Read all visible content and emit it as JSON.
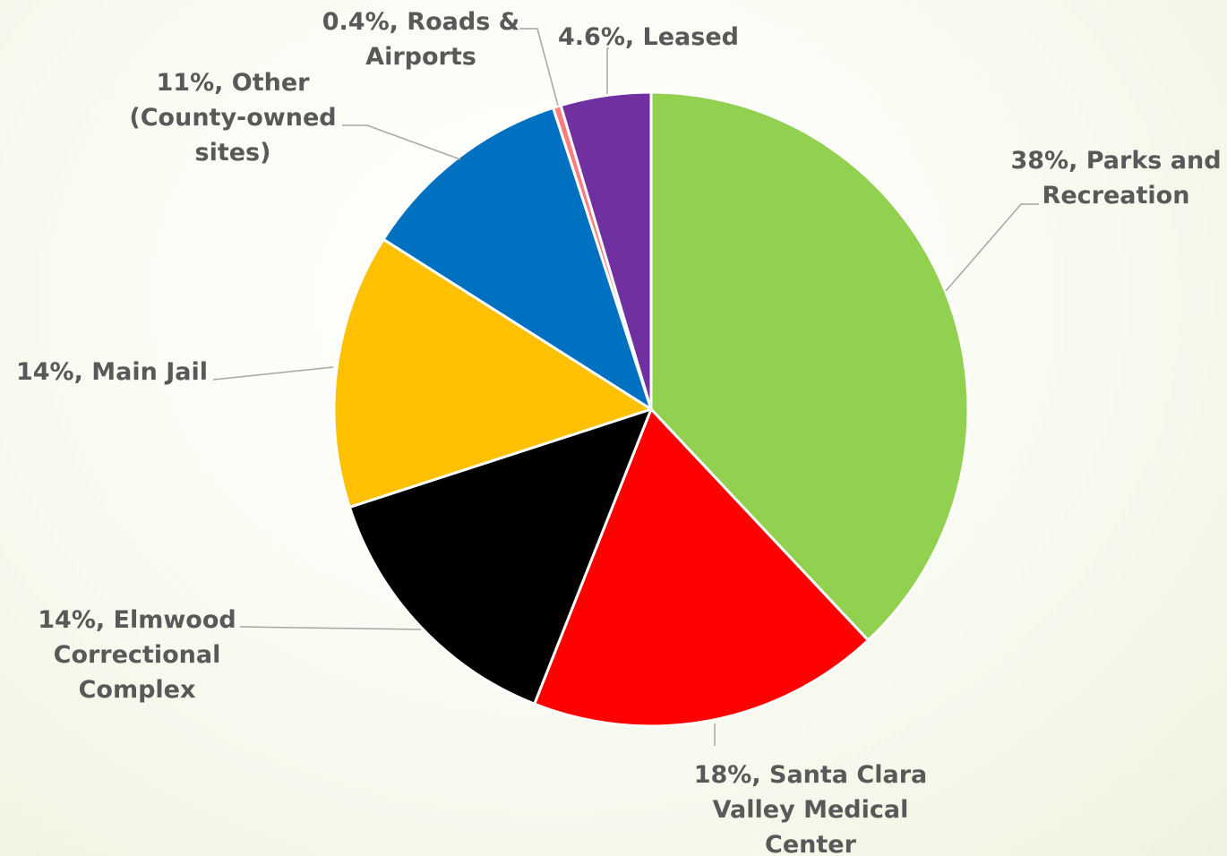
{
  "chart_data": {
    "type": "pie",
    "title": "",
    "slices": [
      {
        "label": "38%, Parks and Recreation",
        "lines": [
          "38%, Parks and",
          "Recreation"
        ],
        "value": 38,
        "color": "#92d050"
      },
      {
        "label": "18%, Santa Clara Valley Medical Center",
        "lines": [
          "18%, Santa Clara",
          "Valley Medical",
          "Center"
        ],
        "value": 18,
        "color": "#ff0000"
      },
      {
        "label": "14%, Elmwood Correctional Complex",
        "lines": [
          "14%, Elmwood",
          "Correctional",
          "Complex"
        ],
        "value": 14,
        "color": "#000000"
      },
      {
        "label": "14%, Main Jail",
        "lines": [
          "14%, Main Jail"
        ],
        "value": 14,
        "color": "#ffc000"
      },
      {
        "label": "11%, Other (County-owned sites)",
        "lines": [
          "11%, Other",
          "(County-owned",
          "sites)"
        ],
        "value": 11,
        "color": "#0070c0"
      },
      {
        "label": "0.4%, Roads & Airports",
        "lines": [
          "0.4%, Roads &",
          "Airports"
        ],
        "value": 0.4,
        "color": "#ff7c80"
      },
      {
        "label": "4.6%, Leased",
        "lines": [
          "4.6%, Leased"
        ],
        "value": 4.6,
        "color": "#7030a0"
      }
    ],
    "legend": "none",
    "data_labels": "outside-with-leader-lines"
  }
}
